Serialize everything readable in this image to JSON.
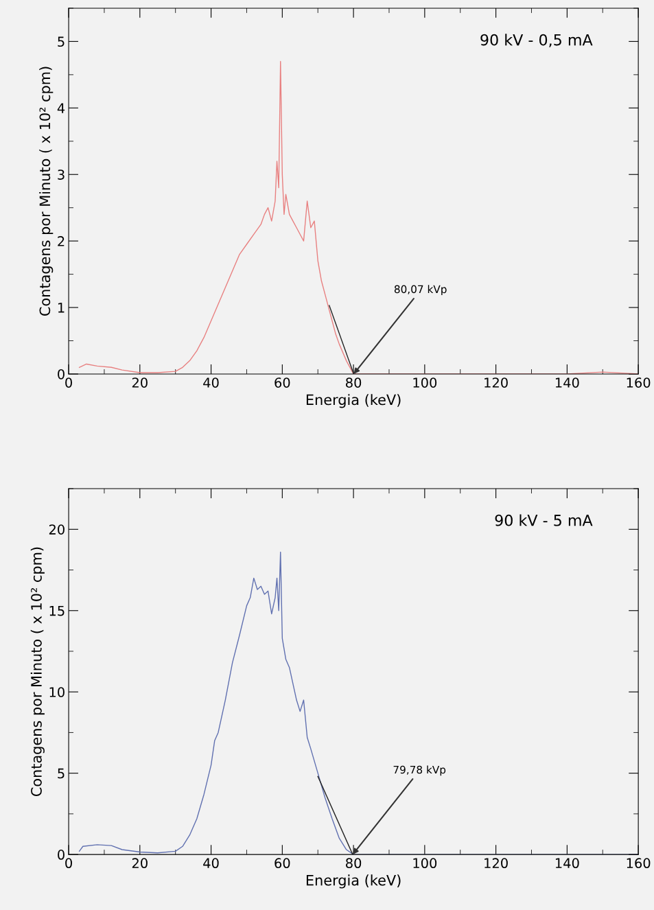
{
  "chart_data": [
    {
      "type": "line",
      "xlabel": "Energia (keV)",
      "ylabel": "Contagens por Minuto ( x 10² cpm)",
      "xlim": [
        0,
        160
      ],
      "xticks": [
        0,
        20,
        40,
        60,
        80,
        100,
        120,
        140,
        160
      ],
      "ylim": [
        0,
        5.5
      ],
      "yticks": [
        0,
        1,
        2,
        3,
        4,
        5
      ],
      "grid": false,
      "legend": false,
      "marker": "none",
      "line_style": "solid",
      "annotations": [
        "90 kV - 0,5 mA",
        {
          "text": "80,07 kVp",
          "x": 80.07,
          "y": 0
        }
      ],
      "series": [
        {
          "color": "#e88080",
          "x": [
            3,
            5,
            8,
            12,
            15,
            20,
            25,
            30,
            32,
            34,
            36,
            38,
            40,
            42,
            44,
            46,
            48,
            50,
            52,
            54,
            55,
            56,
            57,
            58,
            58.5,
            59,
            59.5,
            60,
            60.5,
            61,
            62,
            63,
            64,
            65,
            66,
            67,
            68,
            69,
            70,
            71,
            72,
            73,
            74,
            75,
            76,
            78,
            80,
            90,
            100,
            120,
            140,
            150,
            160
          ],
          "values": [
            0.1,
            0.15,
            0.12,
            0.1,
            0.06,
            0.02,
            0.02,
            0.04,
            0.1,
            0.2,
            0.35,
            0.55,
            0.8,
            1.05,
            1.3,
            1.55,
            1.8,
            1.95,
            2.1,
            2.25,
            2.4,
            2.5,
            2.3,
            2.6,
            3.2,
            2.8,
            4.7,
            3.0,
            2.4,
            2.7,
            2.4,
            2.3,
            2.2,
            2.1,
            2.0,
            2.6,
            2.2,
            2.3,
            1.7,
            1.4,
            1.2,
            1.0,
            0.8,
            0.6,
            0.45,
            0.2,
            0,
            0,
            0,
            0,
            0,
            0.03,
            0
          ]
        },
        {
          "color": "#222222",
          "x": [
            73.2,
            80.07
          ],
          "values": [
            1.03,
            0
          ]
        }
      ]
    },
    {
      "type": "line",
      "xlabel": "Energia (keV)",
      "ylabel": "Contagens por Minuto ( x 10² cpm)",
      "xlim": [
        0,
        160
      ],
      "xticks": [
        0,
        20,
        40,
        60,
        80,
        100,
        120,
        140,
        160
      ],
      "ylim": [
        0,
        22.5
      ],
      "yticks": [
        0,
        5,
        10,
        15,
        20
      ],
      "grid": false,
      "legend": false,
      "marker": "none",
      "line_style": "solid",
      "annotations": [
        "90 kV - 5 mA",
        {
          "text": "79,78 kVp",
          "x": 79.78,
          "y": 0
        }
      ],
      "series": [
        {
          "color": "#6070b0",
          "x": [
            3,
            4,
            8,
            12,
            15,
            20,
            25,
            30,
            32,
            34,
            36,
            38,
            40,
            41,
            42,
            44,
            46,
            48,
            50,
            51,
            52,
            53,
            54,
            55,
            56,
            57,
            58,
            58.5,
            59,
            59.5,
            60,
            61,
            62,
            63,
            64,
            65,
            66,
            67,
            68,
            70,
            72,
            74,
            76,
            78,
            80,
            100,
            160
          ],
          "values": [
            0.2,
            0.5,
            0.6,
            0.55,
            0.3,
            0.15,
            0.1,
            0.2,
            0.5,
            1.2,
            2.2,
            3.7,
            5.5,
            7.0,
            7.5,
            9.5,
            11.8,
            13.5,
            15.3,
            15.8,
            17.0,
            16.3,
            16.5,
            16.0,
            16.2,
            14.8,
            15.8,
            17.0,
            15.0,
            18.6,
            13.3,
            12.0,
            11.5,
            10.5,
            9.5,
            8.8,
            9.5,
            7.2,
            6.5,
            5.0,
            3.5,
            2.2,
            1.0,
            0.3,
            0,
            0,
            0
          ]
        },
        {
          "color": "#222222",
          "x": [
            70,
            79.78
          ],
          "values": [
            4.8,
            0
          ]
        }
      ]
    }
  ]
}
